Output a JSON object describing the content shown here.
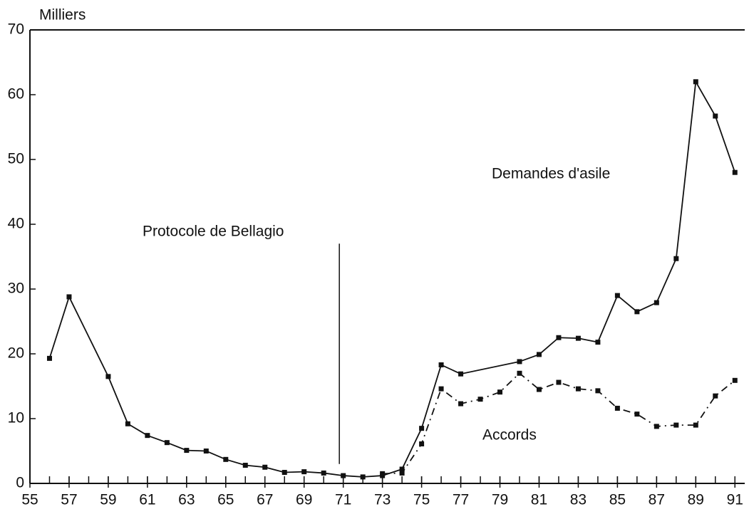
{
  "chart_data": {
    "type": "line",
    "y_unit_label": "Milliers",
    "series": [
      {
        "name": "Demandes d'asile",
        "color": "#111111",
        "dash": false,
        "x": [
          56,
          57,
          59,
          60,
          61,
          62,
          63,
          64,
          65,
          66,
          67,
          68,
          69,
          70,
          71,
          72,
          73,
          74,
          75,
          76,
          77,
          80,
          81,
          82,
          83,
          84,
          85,
          86,
          87,
          88,
          89,
          90,
          91
        ],
        "values": [
          19.3,
          28.8,
          16.5,
          9.2,
          7.4,
          6.3,
          5.1,
          5.0,
          3.7,
          2.8,
          2.5,
          1.7,
          1.8,
          1.6,
          1.2,
          1.0,
          1.2,
          2.2,
          8.5,
          18.3,
          16.9,
          18.8,
          19.9,
          22.5,
          22.4,
          21.8,
          29.0,
          26.5,
          27.9,
          34.7,
          62.0,
          56.7,
          48.0
        ]
      },
      {
        "name": "Accords",
        "color": "#111111",
        "dash": true,
        "x": [
          73,
          74,
          75,
          76,
          77,
          78,
          79,
          80,
          81,
          82,
          83,
          84,
          85,
          86,
          87,
          88,
          89,
          90,
          91
        ],
        "values": [
          1.5,
          1.6,
          6.1,
          14.6,
          12.3,
          13.0,
          14.1,
          17.0,
          14.5,
          15.6,
          14.6,
          14.3,
          11.6,
          10.7,
          8.8,
          9.0,
          9.0,
          13.5,
          15.9
        ]
      }
    ],
    "annotations": [
      {
        "text": "Protocole de Bellagio",
        "x": 70.8
      }
    ],
    "xlim": [
      55,
      91.5
    ],
    "xticks": [
      55,
      57,
      59,
      61,
      63,
      65,
      67,
      69,
      71,
      73,
      75,
      77,
      79,
      81,
      83,
      85,
      87,
      89,
      91
    ],
    "xminor_step": 1,
    "ylim": [
      0,
      70
    ],
    "yticks": [
      0,
      10,
      20,
      30,
      40,
      50,
      60,
      70
    ]
  }
}
